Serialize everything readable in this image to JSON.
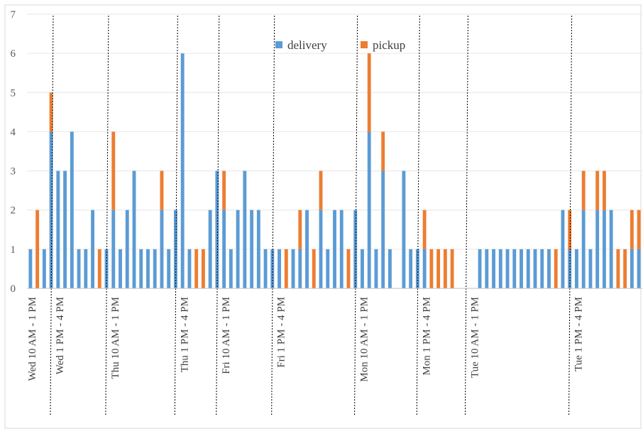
{
  "chart_data": {
    "type": "bar",
    "stacked": true,
    "title": "",
    "xlabel": "",
    "ylabel": "",
    "ylim": [
      0,
      7
    ],
    "yticks": [
      0,
      1,
      2,
      3,
      4,
      5,
      6,
      7
    ],
    "grid": "horizontal",
    "legend_position": "top-center",
    "colors": {
      "delivery": "#5b9bd5",
      "pickup": "#ed7d31"
    },
    "group_labels": [
      "Wed 10 AM - 1 PM",
      "Wed 1 PM - 4 PM",
      "Thu 10 AM - 1 PM",
      "Thu 1 PM - 4 PM",
      "Fri 10 AM - 1 PM",
      "Fri 1 PM - 4 PM",
      "Mon 10 AM - 1 PM",
      "Mon 1 PM - 4 PM",
      "Tue 10 AM - 1 PM",
      "Tue 1 PM - 4 PM"
    ],
    "group_start_index": [
      0,
      4,
      12,
      22,
      28,
      36,
      48,
      57,
      64,
      79
    ],
    "series": [
      {
        "name": "delivery",
        "values": [
          1,
          0,
          1,
          4,
          3,
          3,
          4,
          1,
          1,
          2,
          0,
          1,
          2,
          1,
          2,
          3,
          1,
          1,
          1,
          2,
          1,
          2,
          6,
          1,
          0,
          0,
          2,
          3,
          2,
          1,
          2,
          3,
          2,
          2,
          1,
          1,
          1,
          0,
          1,
          1,
          2,
          0,
          2,
          1,
          2,
          2,
          0,
          2,
          1,
          4,
          1,
          3,
          1,
          0,
          3,
          1,
          1,
          1,
          0,
          0,
          0,
          0,
          0,
          0,
          0,
          1,
          1,
          1,
          1,
          1,
          1,
          1,
          1,
          1,
          1,
          1,
          0,
          2,
          1,
          1,
          2,
          1,
          2,
          2,
          2,
          0,
          0,
          1,
          1
        ],
        "pickup_placeholder": null
      },
      {
        "name": "pickup",
        "values": [
          0,
          2,
          0,
          1,
          0,
          0,
          0,
          0,
          0,
          0,
          1,
          0,
          2,
          0,
          0,
          0,
          0,
          0,
          0,
          1,
          0,
          0,
          0,
          0,
          1,
          1,
          0,
          0,
          1,
          0,
          0,
          0,
          0,
          0,
          0,
          0,
          0,
          1,
          0,
          1,
          0,
          1,
          1,
          0,
          0,
          0,
          1,
          0,
          0,
          2,
          0,
          1,
          0,
          0,
          0,
          0,
          0,
          1,
          1,
          1,
          1,
          1,
          0,
          0,
          0,
          0,
          0,
          0,
          0,
          0,
          0,
          0,
          0,
          0,
          0,
          0,
          1,
          0,
          1,
          0,
          1,
          0,
          1,
          1,
          0,
          1,
          1,
          1,
          1
        ]
      }
    ]
  }
}
